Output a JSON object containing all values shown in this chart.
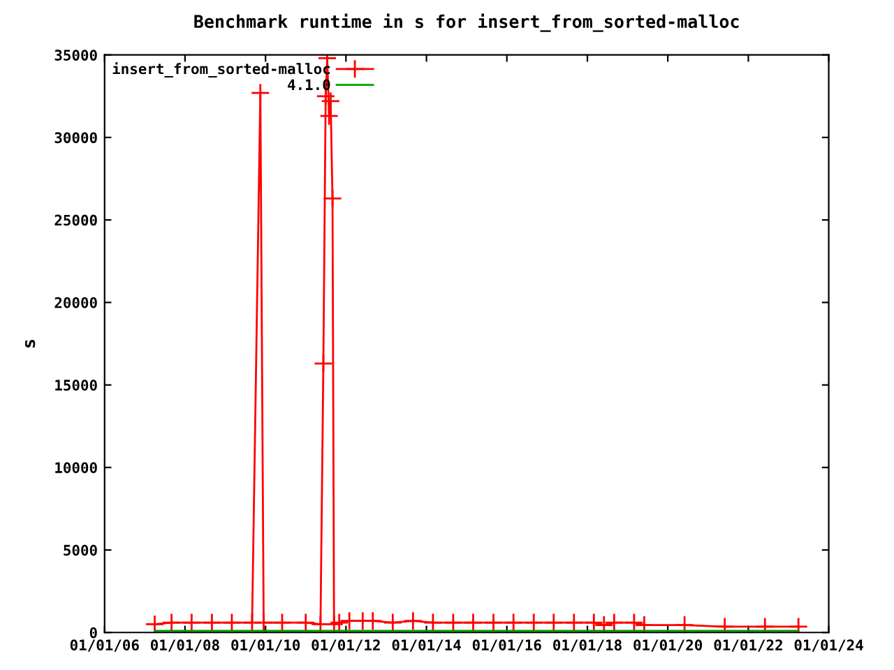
{
  "chart_data": {
    "type": "line",
    "title": "Benchmark runtime in s for insert_from_sorted-malloc",
    "ylabel": "s",
    "xlim": [
      "2006-01-01",
      "2024-01-01"
    ],
    "xticks": [
      {
        "value": "2006-01-01",
        "label": "01/01/06"
      },
      {
        "value": "2008-01-01",
        "label": "01/01/08"
      },
      {
        "value": "2010-01-01",
        "label": "01/01/10"
      },
      {
        "value": "2012-01-01",
        "label": "01/01/12"
      },
      {
        "value": "2014-01-01",
        "label": "01/01/14"
      },
      {
        "value": "2016-01-01",
        "label": "01/01/16"
      },
      {
        "value": "2018-01-01",
        "label": "01/01/18"
      },
      {
        "value": "2020-01-01",
        "label": "01/01/20"
      },
      {
        "value": "2022-01-01",
        "label": "01/01/22"
      },
      {
        "value": "2024-01-01",
        "label": "01/01/24"
      }
    ],
    "ylim": [
      0,
      35000
    ],
    "yticks": [
      0,
      5000,
      10000,
      15000,
      20000,
      25000,
      30000,
      35000
    ],
    "legend": "top left",
    "grid": false,
    "series": [
      {
        "name": "insert_from_sorted-malloc",
        "color": "#ff0000",
        "marker": "cross",
        "x": [
          "2007-04-01",
          "2007-09-01",
          "2008-03-01",
          "2008-09-01",
          "2009-03-01",
          "2009-09-01",
          "2009-11-15",
          "2009-12-15",
          "2010-06-01",
          "2011-01-01",
          "2011-05-15",
          "2011-06-10",
          "2011-07-01",
          "2011-07-15",
          "2011-08-01",
          "2011-08-15",
          "2011-09-01",
          "2011-09-15",
          "2011-11-01",
          "2012-02-01",
          "2012-06-01",
          "2012-09-01",
          "2013-03-01",
          "2013-09-01",
          "2014-03-01",
          "2014-09-01",
          "2015-03-01",
          "2015-09-01",
          "2016-03-01",
          "2016-09-01",
          "2017-03-01",
          "2017-09-01",
          "2018-03-01",
          "2018-06-01",
          "2018-09-01",
          "2019-03-01",
          "2019-06-01",
          "2020-06-01",
          "2021-06-01",
          "2022-06-01",
          "2023-04-01"
        ],
        "values": [
          500,
          600,
          600,
          600,
          600,
          600,
          32700,
          600,
          600,
          600,
          500,
          16300,
          32500,
          34800,
          31300,
          32200,
          26300,
          500,
          600,
          700,
          700,
          700,
          600,
          700,
          600,
          600,
          600,
          600,
          600,
          600,
          600,
          600,
          600,
          450,
          600,
          600,
          450,
          450,
          350,
          350,
          350
        ]
      },
      {
        "name": "4.1.0",
        "color": "#00a000",
        "marker": "none",
        "x": [
          "2007-04-01",
          "2023-04-01"
        ],
        "values": [
          100,
          100
        ]
      }
    ]
  }
}
